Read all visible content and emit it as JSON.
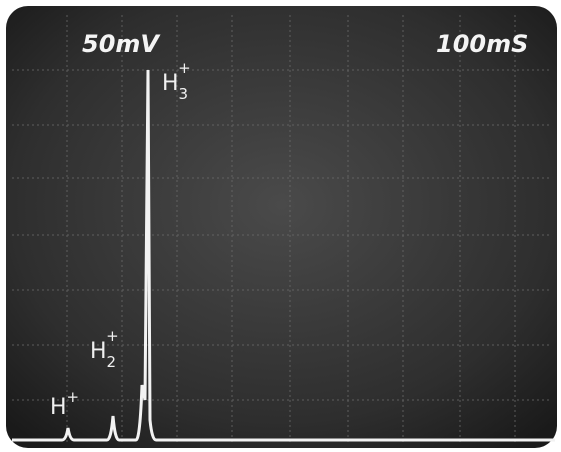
{
  "screen": {
    "vertical_scale": "50mV",
    "time_scale": "100mS"
  },
  "peaks": [
    {
      "base": "H",
      "sup": "+"
    },
    {
      "base": "H",
      "sub": "2",
      "sup": "+"
    },
    {
      "base": "H",
      "sub": "3",
      "sup": "+"
    }
  ]
}
